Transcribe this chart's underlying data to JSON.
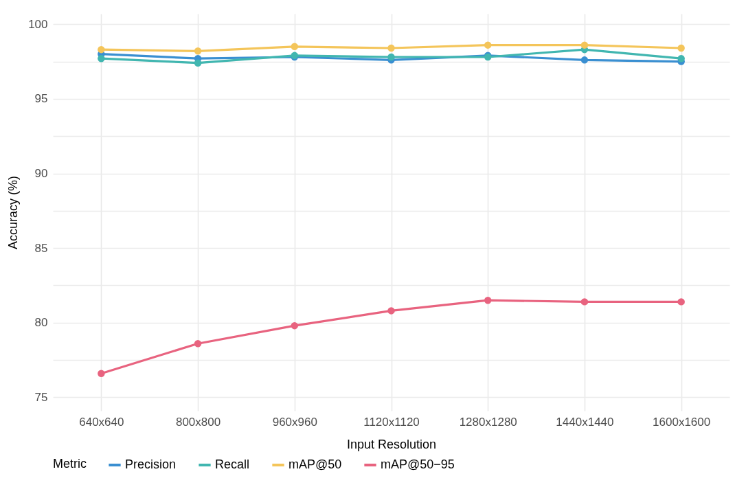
{
  "chart_data": {
    "type": "line",
    "xlabel": "Input Resolution",
    "ylabel": "Accuracy (%)",
    "legend_title": "Metric",
    "categories": [
      "640x640",
      "800x800",
      "960x960",
      "1120x1120",
      "1280x1280",
      "1440x1440",
      "1600x1600"
    ],
    "series": [
      {
        "name": "Precision",
        "color": "#3a8fd1",
        "values": [
          98.0,
          97.7,
          97.8,
          97.6,
          97.9,
          97.6,
          97.5
        ]
      },
      {
        "name": "Recall",
        "color": "#41b6b0",
        "values": [
          97.7,
          97.4,
          97.9,
          97.8,
          97.8,
          98.3,
          97.7
        ]
      },
      {
        "name": "mAP@50",
        "color": "#f4c55a",
        "values": [
          98.3,
          98.2,
          98.5,
          98.4,
          98.6,
          98.6,
          98.4
        ]
      },
      {
        "name": "mAP@50−95",
        "color": "#e8637f",
        "values": [
          76.6,
          78.6,
          79.8,
          80.8,
          81.5,
          81.4,
          81.4
        ]
      }
    ],
    "ylim": [
      74.1,
      100.7
    ],
    "yticks": [
      75,
      {
        "value": 77.5,
        "label": null
      },
      80,
      {
        "value": 82.5,
        "label": null
      },
      85,
      {
        "value": 87.5,
        "label": null
      },
      90,
      {
        "value": 92.5,
        "label": null
      },
      95,
      {
        "value": 97.5,
        "label": null
      },
      100
    ],
    "grid": true,
    "legend": "bottom",
    "marker": "circle",
    "line_style": "solid"
  }
}
